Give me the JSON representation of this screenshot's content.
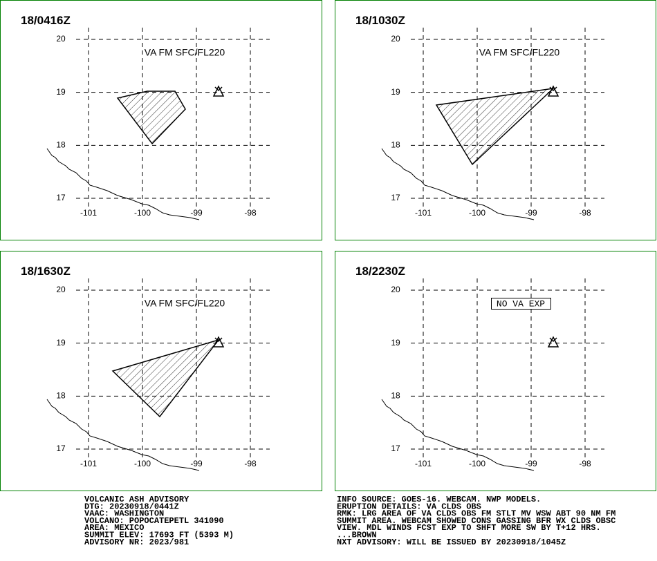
{
  "lat_ticks": [
    20,
    19,
    18,
    17
  ],
  "lon_ticks": [
    -101,
    -100,
    -99,
    -98
  ],
  "panels": [
    {
      "time": "18/0416Z",
      "label": "VA FM SFC/FL220"
    },
    {
      "time": "18/1030Z",
      "label": "VA FM SFC/FL220"
    },
    {
      "time": "18/1630Z",
      "label": "VA FM SFC/FL220"
    },
    {
      "time": "18/2230Z",
      "label": "NO VA EXP"
    }
  ],
  "advisory_left": [
    "VOLCANIC ASH ADVISORY",
    "DTG: 20230918/0441Z",
    "VAAC: WASHINGTON",
    "VOLCANO: POPOCATEPETL 341090",
    "AREA: MEXICO",
    "SUMMIT ELEV: 17693 FT (5393 M)",
    "ADVISORY NR: 2023/981"
  ],
  "advisory_right": [
    "INFO SOURCE: GOES-16. WEBCAM. NWP MODELS.",
    "ERUPTION DETAILS: VA CLDS OBS",
    "RMK: LRG AREA OF VA CLDS OBS FM STLT MV WSW ABT 90 NM FM",
    "SUMMIT AREA. WEBCAM SHOWED CONS GASSING BFR WX CLDS OBSC",
    "VIEW. MDL WINDS FCST EXP TO SHFT MORE SW BY T+12 HRS.",
    "...BROWN",
    "NXT ADVISORY: WILL BE ISSUED BY 20230918/1045Z"
  ]
}
